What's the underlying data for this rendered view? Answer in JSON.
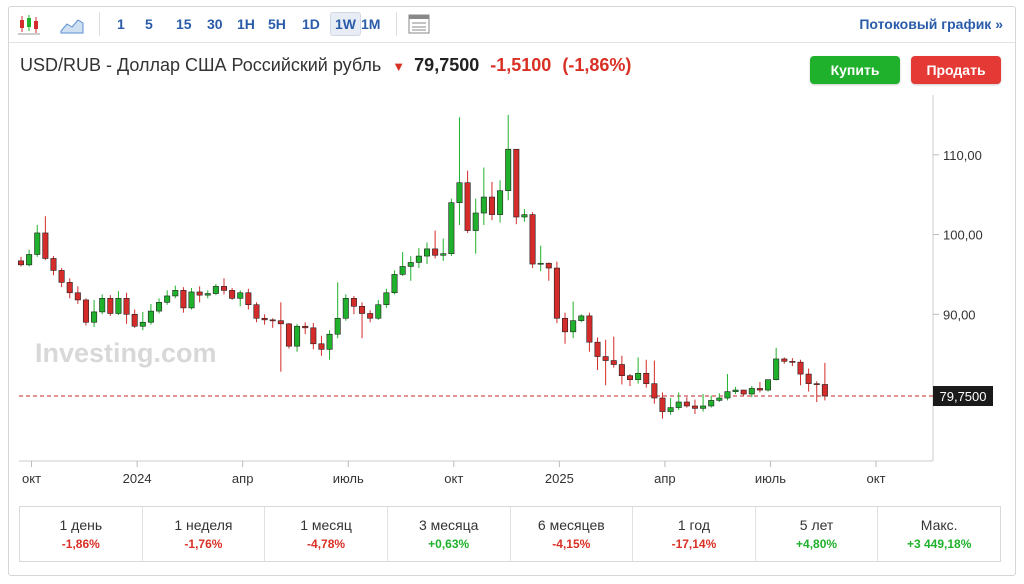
{
  "toolbar": {
    "timeframes": [
      "1",
      "5",
      "15",
      "30",
      "1H",
      "5H",
      "1D",
      "1W",
      "1M"
    ],
    "active_timeframe": "1W",
    "stream_label": "Потоковый график »",
    "icons": [
      "candlestick-chart-icon",
      "area-chart-icon",
      "data-table-icon"
    ]
  },
  "header": {
    "pair": "USD/RUB - Доллар США Российский рубль",
    "price": "79,7500",
    "change": "-1,5100",
    "change_pct": "(-1,86%)",
    "direction": "down-arrow-icon"
  },
  "buttons": {
    "buy": "Купить",
    "sell": "Продать"
  },
  "watermark": "Investing.com",
  "colors": {
    "up": "#1fb12b",
    "down": "#d42b2b",
    "accent": "#2a5caa"
  },
  "chart_data": {
    "type": "candlestick",
    "interval": "1W",
    "y_axis_ticks": [
      "110,00",
      "100,00",
      "90,00"
    ],
    "y_tick_values": [
      110,
      100,
      90
    ],
    "ylim": [
      71.6,
      117.5
    ],
    "x_tick_labels": [
      "окт",
      "2024",
      "апр",
      "июль",
      "окт",
      "2025",
      "апр",
      "июль",
      "окт"
    ],
    "x_tick_index": [
      1.3,
      14.3,
      27.3,
      40.3,
      53.3,
      66.3,
      79.3,
      92.3,
      105.3
    ],
    "last_price_label": "79,7500",
    "last_price": 79.75,
    "candles": [
      [
        96.7,
        96.2,
        97.2,
        96.0
      ],
      [
        96.2,
        97.5,
        98.1,
        96.0
      ],
      [
        97.5,
        100.2,
        101.2,
        97.2
      ],
      [
        100.2,
        97.0,
        102.3,
        96.8
      ],
      [
        97.0,
        95.5,
        97.3,
        94.9
      ],
      [
        95.5,
        94.0,
        95.8,
        93.4
      ],
      [
        94.0,
        92.7,
        94.5,
        92.0
      ],
      [
        92.7,
        91.8,
        93.5,
        91.3
      ],
      [
        91.8,
        89.0,
        92.0,
        88.6
      ],
      [
        89.0,
        90.3,
        91.8,
        88.4
      ],
      [
        90.3,
        92.0,
        92.5,
        90.0
      ],
      [
        92.0,
        90.1,
        92.4,
        89.8
      ],
      [
        90.1,
        92.0,
        92.9,
        89.9
      ],
      [
        92.0,
        90.0,
        92.7,
        88.8
      ],
      [
        90.0,
        88.5,
        90.6,
        88.3
      ],
      [
        88.5,
        89.0,
        90.3,
        88.0
      ],
      [
        89.0,
        90.4,
        91.3,
        88.7
      ],
      [
        90.4,
        91.5,
        92.0,
        90.1
      ],
      [
        91.5,
        92.3,
        93.0,
        91.2
      ],
      [
        92.3,
        93.0,
        93.6,
        92.0
      ],
      [
        93.0,
        90.8,
        93.4,
        90.2
      ],
      [
        90.8,
        92.8,
        93.3,
        90.6
      ],
      [
        92.8,
        92.4,
        93.5,
        91.5
      ],
      [
        92.4,
        92.6,
        93.0,
        92.0
      ],
      [
        92.6,
        93.5,
        93.8,
        92.4
      ],
      [
        93.5,
        93.0,
        94.5,
        92.5
      ],
      [
        93.0,
        92.0,
        93.3,
        91.8
      ],
      [
        92.0,
        92.7,
        93.0,
        91.0
      ],
      [
        92.7,
        91.2,
        93.2,
        90.6
      ],
      [
        91.2,
        89.5,
        91.5,
        89.0
      ],
      [
        89.5,
        89.3,
        90.0,
        88.7
      ],
      [
        89.3,
        89.2,
        89.5,
        88.3
      ],
      [
        89.2,
        88.8,
        91.5,
        82.8
      ],
      [
        88.8,
        86.0,
        88.9,
        85.7
      ],
      [
        86.0,
        88.5,
        88.8,
        85.3
      ],
      [
        88.5,
        88.3,
        89.0,
        87.5
      ],
      [
        88.3,
        86.3,
        88.9,
        85.6
      ],
      [
        86.3,
        85.6,
        87.3,
        84.8
      ],
      [
        85.6,
        87.5,
        88.0,
        84.3
      ],
      [
        87.5,
        89.5,
        94.0,
        87.0
      ],
      [
        89.5,
        92.0,
        92.5,
        89.2
      ],
      [
        92.0,
        91.0,
        92.3,
        90.0
      ],
      [
        91.0,
        90.1,
        91.5,
        87.0
      ],
      [
        90.1,
        89.5,
        90.5,
        89.0
      ],
      [
        89.5,
        91.2,
        91.8,
        89.3
      ],
      [
        91.2,
        92.7,
        93.2,
        90.8
      ],
      [
        92.7,
        95.0,
        95.5,
        92.5
      ],
      [
        95.0,
        96.0,
        97.8,
        94.8
      ],
      [
        96.0,
        96.5,
        97.3,
        94.2
      ],
      [
        96.5,
        97.3,
        98.3,
        95.8
      ],
      [
        97.3,
        98.2,
        99.0,
        96.3
      ],
      [
        98.2,
        97.4,
        100.5,
        97.0
      ],
      [
        97.4,
        97.6,
        99.5,
        96.7
      ],
      [
        97.6,
        104.0,
        104.5,
        97.3
      ],
      [
        104.0,
        106.5,
        114.7,
        101.2
      ],
      [
        106.5,
        100.5,
        108.0,
        100.2
      ],
      [
        100.5,
        102.7,
        104.5,
        97.6
      ],
      [
        102.7,
        104.7,
        108.4,
        101.2
      ],
      [
        104.7,
        102.5,
        106.6,
        101.8
      ],
      [
        102.5,
        105.5,
        106.8,
        101.5
      ],
      [
        105.5,
        110.7,
        115.0,
        104.3
      ],
      [
        110.7,
        102.2,
        110.7,
        101.3
      ],
      [
        102.2,
        102.5,
        103.2,
        101.6
      ],
      [
        102.5,
        96.3,
        102.8,
        95.8
      ],
      [
        96.3,
        96.4,
        98.6,
        95.4
      ],
      [
        96.4,
        95.8,
        96.5,
        94.2
      ],
      [
        95.8,
        89.5,
        96.6,
        88.9
      ],
      [
        89.5,
        87.8,
        90.2,
        86.3
      ],
      [
        87.8,
        89.2,
        91.6,
        87.0
      ],
      [
        89.2,
        89.8,
        90.0,
        89.0
      ],
      [
        89.8,
        86.5,
        90.2,
        85.3
      ],
      [
        86.5,
        84.7,
        87.1,
        83.0
      ],
      [
        84.7,
        84.2,
        86.8,
        81.1
      ],
      [
        84.2,
        83.7,
        87.2,
        83.3
      ],
      [
        83.7,
        82.3,
        84.8,
        81.2
      ],
      [
        82.3,
        81.8,
        82.5,
        81.0
      ],
      [
        81.8,
        82.6,
        84.6,
        81.3
      ],
      [
        82.6,
        81.3,
        84.3,
        80.8
      ],
      [
        81.3,
        79.5,
        84.2,
        78.8
      ],
      [
        79.5,
        77.8,
        80.2,
        76.9
      ],
      [
        77.8,
        78.3,
        79.5,
        77.4
      ],
      [
        78.3,
        79.0,
        80.2,
        78.0
      ],
      [
        79.0,
        78.5,
        79.6,
        78.3
      ],
      [
        78.5,
        78.2,
        79.3,
        77.5
      ],
      [
        78.2,
        78.5,
        80.0,
        77.8
      ],
      [
        78.5,
        79.2,
        79.8,
        78.3
      ],
      [
        79.2,
        79.5,
        80.1,
        79.0
      ],
      [
        79.5,
        80.3,
        82.5,
        79.2
      ],
      [
        80.3,
        80.5,
        80.9,
        80.0
      ],
      [
        80.5,
        80.0,
        80.5,
        79.8
      ],
      [
        80.0,
        80.7,
        81.0,
        79.6
      ],
      [
        80.7,
        80.5,
        81.5,
        80.2
      ],
      [
        80.5,
        81.8,
        81.8,
        80.3
      ],
      [
        81.8,
        84.4,
        85.8,
        81.7
      ],
      [
        84.4,
        84.1,
        84.6,
        83.8
      ],
      [
        84.1,
        84.0,
        84.5,
        83.5
      ],
      [
        84.0,
        82.5,
        84.3,
        81.1
      ],
      [
        82.5,
        81.3,
        83.2,
        80.3
      ],
      [
        81.3,
        81.2,
        81.6,
        79.0
      ],
      [
        81.2,
        79.75,
        83.9,
        79.2
      ]
    ]
  },
  "performance": [
    {
      "label": "1 день",
      "value": "-1,86%"
    },
    {
      "label": "1 неделя",
      "value": "-1,76%"
    },
    {
      "label": "1 месяц",
      "value": "-4,78%"
    },
    {
      "label": "3 месяца",
      "value": "+0,63%"
    },
    {
      "label": "6 месяцев",
      "value": "-4,15%"
    },
    {
      "label": "1 год",
      "value": "-17,14%"
    },
    {
      "label": "5 лет",
      "value": "+4,80%"
    },
    {
      "label": "Макс.",
      "value": "+3 449,18%"
    }
  ]
}
